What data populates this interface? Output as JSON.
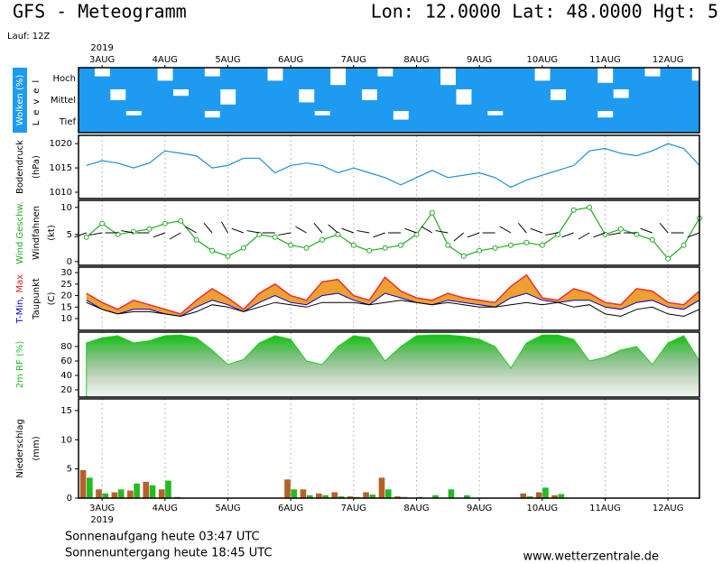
{
  "header": {
    "title": "GFS - Meteogramm",
    "location": "Lon: 12.0000 Lat: 48.0000 Hgt: 5",
    "run": "Lauf: 12Z"
  },
  "footer": {
    "sunrise": "Sonnenaufgang heute 03:47 UTC",
    "sunset": "Sonnenuntergang heute 18:45 UTC",
    "source": "www.wetterzentrale.de"
  },
  "chart_data": {
    "type": "meteogram",
    "year": "2019",
    "x": [
      2.75,
      3,
      3.25,
      3.5,
      3.75,
      4,
      4.25,
      4.5,
      4.75,
      5,
      5.25,
      5.5,
      5.75,
      6,
      6.25,
      6.5,
      6.75,
      7,
      7.25,
      7.5,
      7.75,
      8,
      8.25,
      8.5,
      8.75,
      9,
      9.25,
      9.5,
      9.75,
      10,
      10.25,
      10.5,
      10.75,
      11,
      11.25,
      11.5,
      11.75,
      12,
      12.25,
      12.5
    ],
    "xlim": [
      2.625,
      12.5
    ],
    "xticks": [
      {
        "value": 3,
        "label": "3AUG"
      },
      {
        "value": 4,
        "label": "4AUG"
      },
      {
        "value": 5,
        "label": "5AUG"
      },
      {
        "value": 6,
        "label": "6AUG"
      },
      {
        "value": 7,
        "label": "7AUG"
      },
      {
        "value": 8,
        "label": "8AUG"
      },
      {
        "value": 9,
        "label": "9AUG"
      },
      {
        "value": 10,
        "label": "10AUG"
      },
      {
        "value": 11,
        "label": "11AUG"
      },
      {
        "value": 12,
        "label": "12AUG"
      }
    ],
    "panels": [
      {
        "type": "cloud",
        "ylabel": [
          [
            {
              "text": "Wolken (%)",
              "color": "#ffffff",
              "background": "#1e9bf0"
            }
          ],
          [
            {
              "text": "Level",
              "color": "#000000"
            }
          ]
        ],
        "levels": [
          "Hoch",
          "Mittel",
          "Tief"
        ],
        "color": "#1e9bf0",
        "series": [
          {
            "values": [
              100,
              60,
              100,
              100,
              100,
              40,
              100,
              100,
              60,
              100,
              100,
              100,
              40,
              100,
              100,
              100,
              20,
              100,
              100,
              60,
              100,
              100,
              100,
              20,
              100,
              100,
              100,
              100,
              100,
              40,
              100,
              100,
              100,
              30,
              100,
              100,
              60,
              100,
              100,
              40
            ]
          },
          {
            "values": [
              100,
              100,
              50,
              100,
              100,
              100,
              70,
              100,
              100,
              30,
              100,
              100,
              100,
              100,
              40,
              100,
              100,
              100,
              50,
              100,
              100,
              100,
              100,
              100,
              30,
              100,
              100,
              100,
              100,
              100,
              50,
              100,
              100,
              100,
              60,
              100,
              100,
              100,
              100,
              100
            ]
          },
          {
            "values": [
              100,
              100,
              100,
              80,
              100,
              100,
              100,
              100,
              70,
              100,
              100,
              100,
              100,
              100,
              100,
              80,
              100,
              100,
              100,
              100,
              60,
              100,
              100,
              100,
              100,
              100,
              80,
              100,
              100,
              100,
              100,
              100,
              100,
              70,
              100,
              100,
              100,
              100,
              100,
              100
            ]
          }
        ]
      },
      {
        "type": "line",
        "ylabel": [
          [
            {
              "text": "Bodendruck",
              "color": "#000000"
            }
          ],
          [
            {
              "text": "(hPa)",
              "color": "#000000"
            }
          ]
        ],
        "ylim": [
          1008.7,
          1021.7
        ],
        "yticks": [
          1010,
          1015,
          1020
        ],
        "series": [
          {
            "color": "#1e8fd0",
            "values": [
              1015.5,
              1016.5,
              1016,
              1015,
              1016,
              1018.5,
              1018,
              1017.5,
              1015,
              1015.5,
              1017,
              1017,
              1014,
              1015.5,
              1016,
              1015.5,
              1014,
              1015,
              1014,
              1013,
              1011.5,
              1013,
              1014.5,
              1013,
              1013.5,
              1014,
              1013,
              1011,
              1012.5,
              1013.5,
              1014.5,
              1015.5,
              1018.5,
              1019,
              1018,
              1017.5,
              1018.5,
              1020,
              1019,
              1015.5
            ]
          }
        ]
      },
      {
        "type": "wind",
        "ylabel": [
          [
            {
              "text": "Wind Geschw.",
              "color": "#22aa22"
            }
          ],
          [
            {
              "text": "Windfahnen",
              "color": "#000000"
            }
          ],
          [
            {
              "text": "(kt)",
              "color": "#000000"
            }
          ]
        ],
        "ylim": [
          -0.7,
          11.3
        ],
        "yticks": [
          0,
          5,
          10
        ],
        "series": [
          {
            "color": "#22aa22",
            "values": [
              4.5,
              7,
              5,
              5.5,
              6,
              7,
              7.5,
              4,
              2,
              1,
              2.5,
              5,
              4.5,
              3,
              2.5,
              4,
              5,
              3,
              2,
              2.5,
              3,
              5,
              9,
              3,
              1,
              2,
              2.5,
              3,
              3.5,
              3,
              5,
              9.5,
              10,
              5,
              6,
              5,
              4,
              0.5,
              3,
              8
            ]
          },
          {
            "color": "#000000",
            "kind": "barbs",
            "values": [
              250,
              260,
              270,
              280,
              270,
              250,
              240,
              300,
              320,
              330,
              290,
              280,
              270,
              260,
              300,
              320,
              310,
              290,
              280,
              250,
              270,
              290,
              300,
              280,
              230,
              250,
              270,
              300,
              320,
              290,
              260,
              250,
              240,
              250,
              260,
              270,
              290,
              320,
              270,
              250
            ]
          }
        ]
      },
      {
        "type": "temperature",
        "ylabel": [
          [
            {
              "text": "T-Min,",
              "color": "#0000cc"
            },
            {
              "text": "Max",
              "color": "#e02020"
            }
          ],
          [
            {
              "text": "Taupunkt",
              "color": "#000000"
            }
          ],
          [
            {
              "text": "(C)",
              "color": "#000000"
            }
          ]
        ],
        "ylim": [
          4.9,
          32.4
        ],
        "yticks": [
          10,
          15,
          20,
          25,
          30
        ],
        "band_color": "#f0a030",
        "series": [
          {
            "color": "#0000cc",
            "values": [
              18,
              14,
              12,
              14,
              14,
              12,
              11,
              15,
              18,
              16,
              13,
              17,
              20,
              17,
              16,
              20,
              21,
              18,
              16,
              21,
              19,
              17,
              16,
              18,
              17,
              16,
              15,
              19,
              21,
              18,
              17,
              18,
              18,
              15,
              14,
              17,
              18,
              15,
              14,
              18
            ]
          },
          {
            "color": "#e83030",
            "values": [
              21,
              17,
              14,
              18,
              16,
              14,
              12,
              18,
              23,
              19,
              14,
              21,
              25,
              20,
              18,
              26,
              27,
              20,
              18,
              28,
              22,
              19,
              18,
              21,
              19,
              18,
              17,
              24,
              29,
              19,
              18,
              23,
              21,
              17,
              16,
              23,
              22,
              17,
              16,
              22
            ]
          },
          {
            "color": "#000000",
            "values": [
              17,
              14,
              12,
              13,
              13,
              12,
              11,
              13,
              16,
              15,
              13,
              15,
              17,
              16,
              15,
              17,
              17,
              17,
              16,
              17,
              18,
              17,
              16,
              17,
              16,
              15,
              15,
              16,
              17,
              16,
              17,
              15,
              16,
              12,
              11,
              14,
              15,
              12,
              11,
              14
            ]
          }
        ]
      },
      {
        "type": "area",
        "ylabel": [
          [
            {
              "text": "2m RF (%)",
              "color": "#22bb22"
            }
          ]
        ],
        "ylim": [
          10,
          100
        ],
        "yticks": [
          20,
          40,
          60,
          80
        ],
        "series": [
          {
            "color": "#22cc22",
            "values": [
              85,
              92,
              95,
              85,
              88,
              95,
              96,
              92,
              75,
              55,
              62,
              85,
              95,
              90,
              60,
              55,
              80,
              95,
              92,
              60,
              80,
              95,
              96,
              96,
              94,
              90,
              80,
              50,
              85,
              96,
              96,
              90,
              60,
              65,
              75,
              80,
              55,
              85,
              95,
              60
            ]
          }
        ]
      },
      {
        "type": "bar",
        "ylabel": [
          [
            {
              "text": "Niederschlag",
              "color": "#000000"
            }
          ],
          [
            {
              "text": "(mm)",
              "color": "#000000"
            }
          ]
        ],
        "ylim": [
          0,
          17
        ],
        "yticks": [
          0,
          5,
          10,
          15
        ],
        "series": [
          {
            "color": "#b8602a",
            "values": [
              4.8,
              1.5,
              1.0,
              1.3,
              2.8,
              1.5,
              0.2,
              0,
              0,
              0,
              0,
              0,
              0,
              3.2,
              1.5,
              0.8,
              1.0,
              0.3,
              1.0,
              3.5,
              0.3,
              0,
              0,
              0,
              0,
              0,
              0,
              0,
              0.8,
              1.0,
              0.5,
              0,
              0,
              0,
              0,
              0,
              0,
              0,
              0,
              0
            ]
          },
          {
            "color": "#22bb22",
            "values": [
              3.5,
              0.8,
              1.5,
              2.5,
              2.2,
              3.0,
              0,
              0,
              0,
              0,
              0,
              0,
              0,
              1.5,
              0.5,
              0.5,
              0.3,
              0.2,
              0.6,
              1.5,
              0.2,
              0.2,
              0.5,
              1.5,
              0.5,
              0,
              0,
              0,
              0.3,
              1.8,
              0.7,
              0,
              0,
              0,
              0,
              0,
              0,
              0,
              0,
              0
            ]
          }
        ]
      }
    ]
  }
}
